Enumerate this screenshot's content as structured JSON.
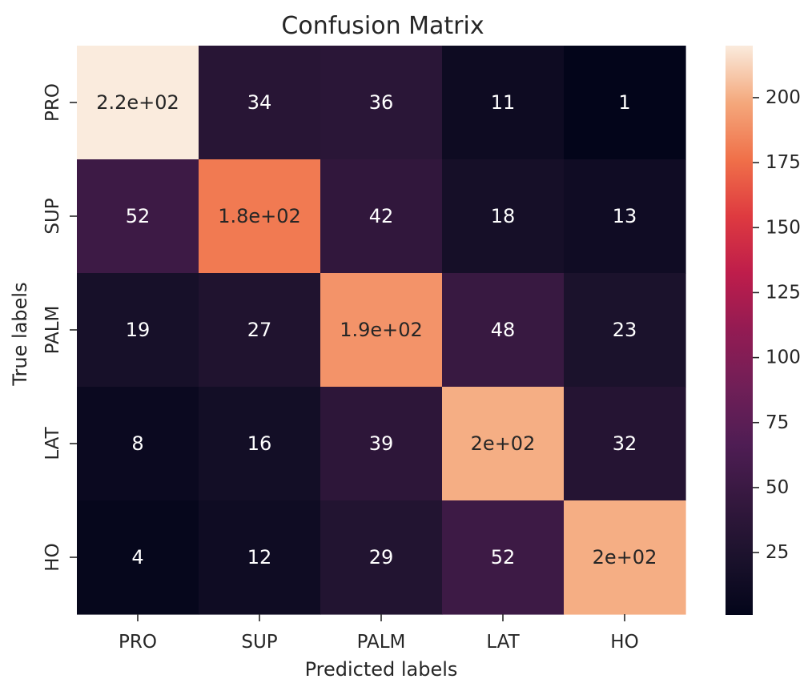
{
  "chart_data": {
    "type": "heatmap",
    "title": "Confusion Matrix",
    "xlabel": "Predicted labels",
    "ylabel": "True labels",
    "x_categories": [
      "PRO",
      "SUP",
      "PALM",
      "LAT",
      "HO"
    ],
    "y_categories": [
      "PRO",
      "SUP",
      "PALM",
      "LAT",
      "HO"
    ],
    "values": [
      [
        220,
        34,
        36,
        11,
        1
      ],
      [
        52,
        180,
        42,
        18,
        13
      ],
      [
        19,
        27,
        190,
        48,
        23
      ],
      [
        8,
        16,
        39,
        200,
        32
      ],
      [
        4,
        12,
        29,
        52,
        200
      ]
    ],
    "cell_labels": [
      [
        "2.2e+02",
        "34",
        "36",
        "11",
        "1"
      ],
      [
        "52",
        "1.8e+02",
        "42",
        "18",
        "13"
      ],
      [
        "19",
        "27",
        "1.9e+02",
        "48",
        "23"
      ],
      [
        "8",
        "16",
        "39",
        "2e+02",
        "32"
      ],
      [
        "4",
        "12",
        "29",
        "52",
        "2e+02"
      ]
    ],
    "colorbar": {
      "colormap": "rocket",
      "vmin": 1,
      "vmax": 220,
      "ticks": [
        25,
        50,
        75,
        100,
        125,
        150,
        175,
        200
      ],
      "tick_labels": [
        "25",
        "50",
        "75",
        "100",
        "125",
        "150",
        "175",
        "200"
      ]
    },
    "grid": false,
    "legend": "colorbar-right",
    "annotation_colors": {
      "on_dark": "#ffffff",
      "on_light": "#262626"
    }
  }
}
